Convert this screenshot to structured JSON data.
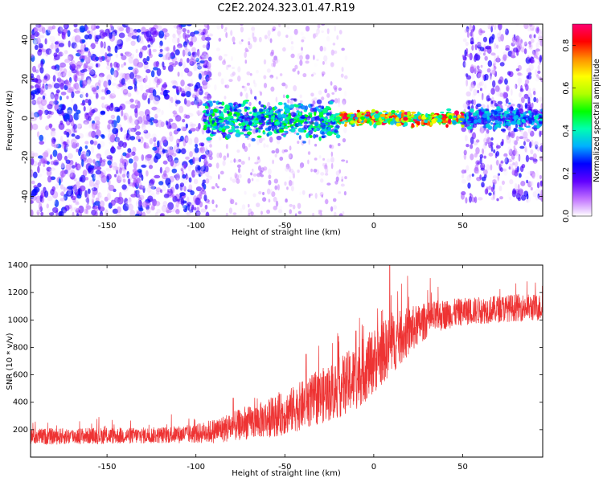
{
  "title": "C2E2.2024.323.01.47.R19",
  "chart_data": [
    {
      "type": "heatmap",
      "title": "C2E2.2024.323.01.47.R19",
      "xlabel": "Height of straight line (km)",
      "ylabel": "Frequency (Hz)",
      "xlim": [
        -193,
        95
      ],
      "ylim": [
        -50,
        48
      ],
      "xticks": [
        -150,
        -100,
        -50,
        0,
        50
      ],
      "yticks": [
        -40,
        -20,
        0,
        20,
        40
      ],
      "colorbar": {
        "label": "Normalized spectral amplitude",
        "range": [
          0,
          0.9
        ],
        "ticks": [
          0.0,
          0.2,
          0.4,
          0.6,
          0.8
        ],
        "colors": [
          "#ffffff",
          "#c070ff",
          "#6000ff",
          "#0000ff",
          "#00b0ff",
          "#00ffb0",
          "#00ff00",
          "#b0ff00",
          "#ffff00",
          "#ff9000",
          "#ff0000",
          "#ff0070"
        ]
      },
      "regions": [
        {
          "x_range": [
            -193,
            -95
          ],
          "description": "broadband scattered amplitude 0.0-0.25 across all frequencies"
        },
        {
          "x_range": [
            -95,
            -20
          ],
          "description": "concentrated band near 0 Hz, amplitude ~0.3-0.5"
        },
        {
          "x_range": [
            -20,
            50
          ],
          "description": "strong narrow band near 0 Hz, amplitude ~0.5-0.9"
        },
        {
          "x_range": [
            50,
            95
          ],
          "description": "band near 0 Hz amplitude ~0.3 with scattered 0.1-0.2 spread"
        }
      ]
    },
    {
      "type": "line",
      "xlabel": "Height of straight line (km)",
      "ylabel": "SNR (10 * v/v)",
      "xlim": [
        -193,
        95
      ],
      "ylim": [
        0,
        1400
      ],
      "xticks": [
        -150,
        -100,
        -50,
        0,
        50
      ],
      "yticks": [
        200,
        400,
        600,
        800,
        1000,
        1200,
        1400
      ],
      "color": "#ee3333",
      "series": [
        {
          "x": [
            -193,
            -180,
            -160,
            -140,
            -120,
            -100,
            -90,
            -80,
            -70,
            -60,
            -50,
            -40,
            -30,
            -20,
            -10,
            0,
            10,
            20,
            25,
            30,
            40,
            50,
            60,
            70,
            80,
            95
          ],
          "y": [
            150,
            150,
            155,
            155,
            160,
            170,
            190,
            220,
            250,
            280,
            320,
            380,
            440,
            500,
            580,
            700,
            820,
            920,
            960,
            1000,
            1040,
            1060,
            1070,
            1080,
            1090,
            1090
          ],
          "noise_amplitude": [
            60,
            60,
            60,
            60,
            60,
            70,
            90,
            110,
            120,
            140,
            160,
            180,
            200,
            220,
            240,
            240,
            220,
            180,
            150,
            130,
            110,
            100,
            100,
            100,
            100,
            100
          ],
          "peaks": [
            [
              -79,
              430
            ],
            [
              -38,
              750
            ],
            [
              -10,
              920
            ],
            [
              9,
              1400
            ],
            [
              -20,
              880
            ]
          ]
        }
      ]
    }
  ]
}
